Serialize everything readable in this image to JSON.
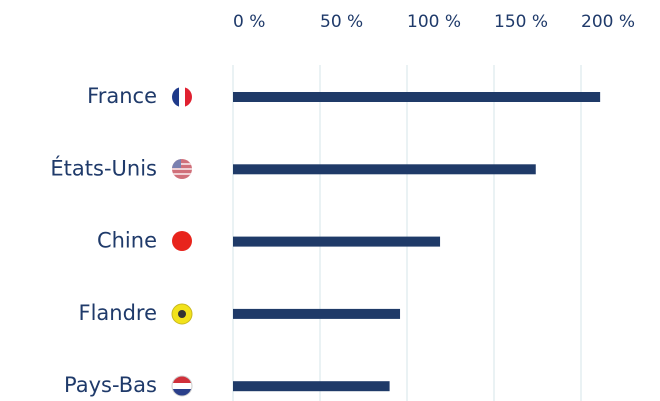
{
  "chart_data": {
    "type": "barh",
    "categories": [
      "France",
      "États-Unis",
      "Chine",
      "Flandre",
      "Pays-Bas"
    ],
    "values": [
      211,
      174,
      119,
      96,
      90
    ],
    "color": "#1f3a68",
    "xlim": [
      0,
      240
    ],
    "xticks": [
      {
        "value": 0,
        "label": "0 %"
      },
      {
        "value": 50,
        "label": "50 %"
      },
      {
        "value": 100,
        "label": "100 %"
      },
      {
        "value": 150,
        "label": "150 %"
      },
      {
        "value": 200,
        "label": "200 %"
      }
    ],
    "grid": true
  }
}
